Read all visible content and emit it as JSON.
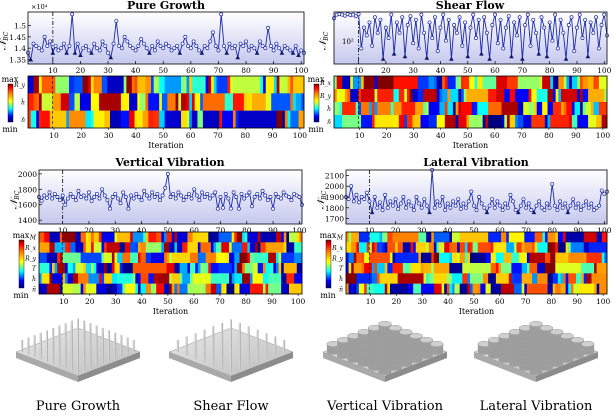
{
  "chart_data": [
    {
      "type": "line",
      "title": "Pure Growth",
      "ylabel": "N_BC",
      "y_multiplier_label": "×10⁴",
      "ylim": [
        1.33,
        1.56
      ],
      "yticks": [
        1.35,
        1.4,
        1.45,
        1.5
      ],
      "ytick_labels": [
        "1.35",
        "1.4",
        "1.45",
        "1.5"
      ],
      "xlim": [
        1,
        101
      ],
      "xticks": [
        10,
        20,
        30,
        40,
        50,
        60,
        70,
        80,
        90,
        100
      ],
      "dashed_x": 10,
      "values": [
        1.38,
        1.35,
        1.42,
        1.41,
        1.4,
        1.39,
        1.45,
        1.41,
        1.43,
        1.38,
        1.41,
        1.39,
        1.4,
        1.42,
        1.38,
        1.41,
        1.55,
        1.38,
        1.42,
        1.37,
        1.4,
        1.41,
        1.39,
        1.38,
        1.42,
        1.4,
        1.39,
        1.43,
        1.41,
        1.38,
        1.36,
        1.42,
        1.52,
        1.41,
        1.4,
        1.45,
        1.43,
        1.41,
        1.4,
        1.39,
        1.41,
        1.44,
        1.42,
        1.4,
        1.38,
        1.41,
        1.39,
        1.43,
        1.41,
        1.4,
        1.42,
        1.41,
        1.39,
        1.4,
        1.41,
        1.38,
        1.42,
        1.45,
        1.41,
        1.4,
        1.43,
        1.41,
        1.39,
        1.38,
        1.41,
        1.4,
        1.43,
        1.47,
        1.41,
        1.39,
        1.55,
        1.41,
        1.38,
        1.42,
        1.4,
        1.41,
        1.36,
        1.42,
        1.41,
        1.43,
        1.39,
        1.41,
        1.4,
        1.38,
        1.43,
        1.41,
        1.4,
        1.49,
        1.41,
        1.39,
        1.42,
        1.4,
        1.38,
        1.41,
        1.4,
        1.39,
        1.38,
        1.41,
        1.37,
        1.39,
        1.38
      ],
      "heatmap_rows": [
        "max",
        "R_y",
        "ĥ",
        "n̄",
        "min"
      ],
      "heatmap_xlabel": "Iteration"
    },
    {
      "type": "line",
      "title": "Shear Flow",
      "ylabel": "N_BC",
      "y_multiplier_label": "10²",
      "ylim": [
        0,
        1
      ],
      "xlim": [
        1,
        101
      ],
      "xticks": [
        10,
        20,
        30,
        40,
        50,
        60,
        70,
        80,
        90,
        100
      ],
      "dashed_x": 10,
      "values": [
        0.88,
        0.95,
        0.96,
        0.95,
        0.93,
        0.96,
        0.94,
        0.95,
        0.92,
        0.96,
        0.3,
        0.7,
        0.55,
        0.8,
        0.35,
        0.9,
        0.6,
        0.85,
        0.1,
        0.7,
        0.5,
        0.95,
        0.2,
        0.8,
        0.6,
        0.9,
        0.15,
        0.75,
        0.92,
        0.4,
        0.85,
        0.3,
        0.95,
        0.6,
        0.12,
        0.8,
        0.5,
        0.9,
        0.25,
        0.7,
        0.95,
        0.45,
        0.85,
        0.1,
        0.75,
        0.6,
        0.9,
        0.35,
        0.8,
        0.15,
        0.7,
        0.95,
        0.5,
        0.85,
        0.2,
        0.9,
        0.6,
        0.1,
        0.75,
        0.95,
        0.4,
        0.85,
        0.3,
        0.7,
        0.92,
        0.15,
        0.8,
        0.55,
        0.9,
        0.1,
        0.75,
        0.95,
        0.35,
        0.85,
        0.6,
        0.2,
        0.9,
        0.7,
        0.15,
        0.8,
        0.45,
        0.95,
        0.3,
        0.85,
        0.6,
        0.1,
        0.75,
        0.9,
        0.25,
        0.7,
        0.95,
        0.5,
        0.85,
        0.15,
        0.8,
        0.6,
        0.9,
        0.3,
        0.75,
        0.95,
        0.55
      ],
      "heatmap_rows": [
        "max",
        "R_x",
        "R_y",
        "ĥ",
        "n̄",
        "min"
      ],
      "heatmap_xlabel": "Iteration"
    },
    {
      "type": "line",
      "title": "Vertical Vibration",
      "ylabel": "N_BC",
      "ylim": [
        1350,
        2050
      ],
      "yticks": [
        1400,
        1600,
        1800,
        2000
      ],
      "ytick_labels": [
        "1400",
        "1600",
        "1800",
        "2000"
      ],
      "xlim": [
        1,
        101
      ],
      "xticks": [
        10,
        20,
        30,
        40,
        50,
        60,
        70,
        80,
        90,
        100
      ],
      "dashed_x": 10,
      "values": [
        1700,
        1650,
        1720,
        1690,
        1760,
        1680,
        1740,
        1700,
        1660,
        1720,
        1600,
        1680,
        1740,
        1700,
        1660,
        1780,
        1700,
        1720,
        1680,
        1760,
        1650,
        1700,
        1740,
        1680,
        1800,
        1720,
        1660,
        1550,
        1700,
        1740,
        1680,
        1620,
        1760,
        1700,
        1550,
        1720,
        1680,
        1740,
        1700,
        1660,
        1780,
        1720,
        1680,
        1760,
        1700,
        1740,
        1660,
        1720,
        1820,
        2000,
        1700,
        1740,
        1680,
        1760,
        1720,
        1660,
        1700,
        1740,
        1680,
        1800,
        1720,
        1660,
        1760,
        1700,
        1740,
        1680,
        1720,
        1760,
        1550,
        1700,
        1560,
        1740,
        1680,
        1550,
        1760,
        1700,
        1550,
        1740,
        1680,
        1720,
        1760,
        1580,
        1700,
        1740,
        1680,
        1780,
        1720,
        1660,
        1700,
        1550,
        1740,
        1700,
        1680,
        1760,
        1720,
        1700,
        1660,
        1740,
        1720,
        1700,
        1600
      ],
      "heatmap_rows": [
        "max",
        "M",
        "R_x",
        "R_y",
        "T",
        "ĥ",
        "n̄",
        "min"
      ],
      "heatmap_xlabel": "Iteration"
    },
    {
      "type": "line",
      "title": "Lateral Vibration",
      "ylabel": "N_BC",
      "ylim": [
        1650,
        2150
      ],
      "yticks": [
        1700,
        1800,
        1900,
        2000,
        2100
      ],
      "ytick_labels": [
        "1700",
        "1800",
        "1900",
        "2000",
        "2100"
      ],
      "xlim": [
        1,
        101
      ],
      "xticks": [
        10,
        20,
        30,
        40,
        50,
        60,
        70,
        80,
        90,
        100
      ],
      "dashed_x": 10,
      "values": [
        1900,
        1880,
        2000,
        1860,
        1920,
        1850,
        1900,
        1880,
        1940,
        1860,
        1760,
        1900,
        1800,
        1850,
        1780,
        1920,
        1800,
        1860,
        1820,
        1880,
        1790,
        1840,
        1900,
        1800,
        1860,
        1820,
        1780,
        1900,
        1840,
        1800,
        1880,
        1820,
        1760,
        2160,
        1800,
        1860,
        1820,
        1900,
        1780,
        1840,
        1800,
        1860,
        1820,
        1880,
        1790,
        1840,
        1800,
        1860,
        1950,
        1820,
        1780,
        1900,
        1840,
        1800,
        1760,
        1820,
        1880,
        1800,
        1860,
        1820,
        1780,
        1840,
        1800,
        1920,
        1860,
        1780,
        1760,
        1820,
        1880,
        1800,
        1840,
        1780,
        1760,
        1820,
        1860,
        1800,
        1780,
        1840,
        1800,
        2020,
        1820,
        1780,
        1860,
        1800,
        1840,
        1760,
        1820,
        1880,
        1800,
        1840,
        1780,
        1820,
        1860,
        1800,
        1840,
        1780,
        1800,
        1820,
        1960,
        1930,
        1950
      ],
      "heatmap_rows": [
        "max",
        "M",
        "R_x",
        "R_y",
        "T",
        "ĥ",
        "n̄",
        "min"
      ],
      "heatmap_xlabel": "Iteration"
    }
  ],
  "captions": [
    "Pure Growth",
    "Shear Flow",
    "Vertical Vibration",
    "Lateral Vibration"
  ],
  "colors": {
    "line": "#1a2aa8",
    "fill_top": "#ffffff",
    "fill_bottom": "#c6c8ee",
    "marker_fill": "#ffffff",
    "dashed": "#000000"
  }
}
